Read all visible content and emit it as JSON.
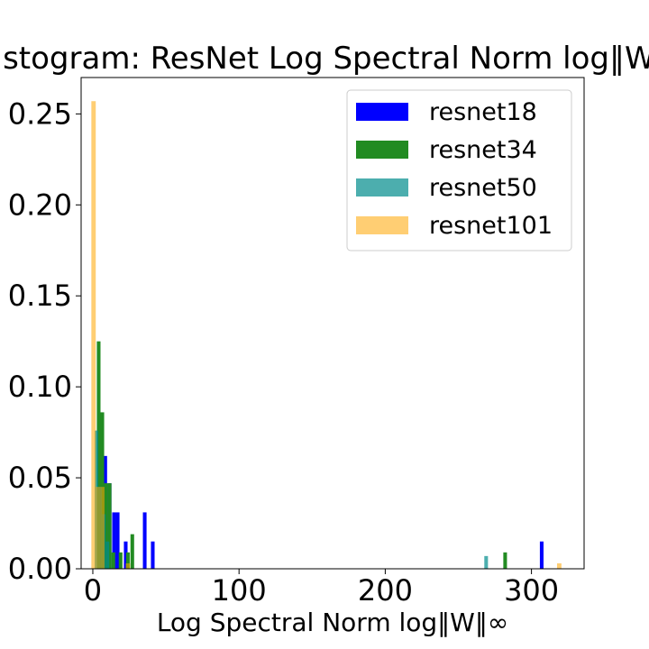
{
  "chart_data": {
    "type": "bar",
    "title": "Histogram: ResNet Log Spectral Norm log‖W‖∞",
    "xlabel": "Log Spectral Norm log‖W‖∞",
    "ylabel": "",
    "xlim": [
      -8,
      336
    ],
    "ylim": [
      0,
      0.27
    ],
    "x_ticks": [
      0,
      100,
      200,
      300
    ],
    "x_tick_labels": [
      "0",
      "100",
      "200",
      "300"
    ],
    "y_ticks": [
      0.0,
      0.05,
      0.1,
      0.15,
      0.2,
      0.25
    ],
    "y_tick_labels": [
      "0.00",
      "0.05",
      "0.10",
      "0.15",
      "0.20",
      "0.25"
    ],
    "grid": false,
    "legend_position": "top-right",
    "series": [
      {
        "name": "resnet18",
        "color": "#0000ff",
        "opacity": 1.0,
        "bin_width": 2.5,
        "bins": [
          {
            "x": 8.5,
            "value": 0.062
          },
          {
            "x": 11.5,
            "value": 0.047
          },
          {
            "x": 14.5,
            "value": 0.031
          },
          {
            "x": 17.0,
            "value": 0.031
          },
          {
            "x": 22.5,
            "value": 0.015
          },
          {
            "x": 35.5,
            "value": 0.031
          },
          {
            "x": 41.0,
            "value": 0.015
          },
          {
            "x": 307.0,
            "value": 0.015
          }
        ]
      },
      {
        "name": "resnet34",
        "color": "#228b22",
        "opacity": 1.0,
        "bin_width": 2.5,
        "bins": [
          {
            "x": 4.0,
            "value": 0.125
          },
          {
            "x": 6.5,
            "value": 0.086
          },
          {
            "x": 9.0,
            "value": 0.047
          },
          {
            "x": 11.5,
            "value": 0.047
          },
          {
            "x": 14.0,
            "value": 0.009
          },
          {
            "x": 19.0,
            "value": 0.009
          },
          {
            "x": 24.0,
            "value": 0.009
          },
          {
            "x": 27.0,
            "value": 0.019
          },
          {
            "x": 282.0,
            "value": 0.009
          }
        ]
      },
      {
        "name": "resnet50",
        "color": "#008b8b",
        "opacity": 0.7,
        "bin_width": 2.5,
        "bins": [
          {
            "x": 2.5,
            "value": 0.076
          },
          {
            "x": 5.0,
            "value": 0.045
          },
          {
            "x": 7.5,
            "value": 0.03
          },
          {
            "x": 10.0,
            "value": 0.015
          },
          {
            "x": 269.0,
            "value": 0.007
          }
        ]
      },
      {
        "name": "resnet101",
        "color": "#ffa500",
        "opacity": 0.55,
        "bin_width": 3.0,
        "bins": [
          {
            "x": 0.5,
            "value": 0.257
          },
          {
            "x": 3.5,
            "value": 0.045
          },
          {
            "x": 6.5,
            "value": 0.045
          },
          {
            "x": 24.0,
            "value": 0.003
          },
          {
            "x": 319.0,
            "value": 0.003
          }
        ]
      }
    ]
  }
}
